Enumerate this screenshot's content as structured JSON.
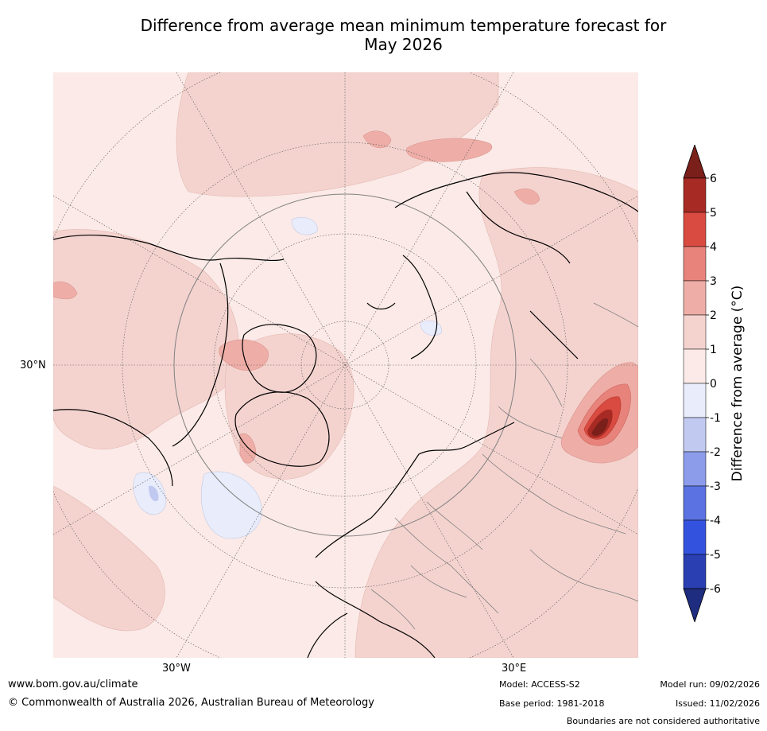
{
  "title": {
    "line1": "Difference from average mean minimum temperature forecast for",
    "line2": "May 2026"
  },
  "map": {
    "labels": {
      "lat_30n": "30°N",
      "lon_30w": "30°W",
      "lon_30e": "30°E"
    },
    "background_color": "#fbeae7",
    "land_outline_color": "#000000",
    "border_color": "#808080"
  },
  "colorbar": {
    "title": "Difference from average (°C)",
    "ticks": [
      "6",
      "5",
      "4",
      "3",
      "2",
      "1",
      "0",
      "-1",
      "-2",
      "-3",
      "-4",
      "-5",
      "-6"
    ],
    "bins": [
      {
        "range": ">6",
        "color": "#7a1f1a"
      },
      {
        "range": "5 to 6",
        "color": "#a72a24"
      },
      {
        "range": "4 to 5",
        "color": "#d94b40"
      },
      {
        "range": "3 to 4",
        "color": "#e8837b"
      },
      {
        "range": "2 to 3",
        "color": "#eeaea7"
      },
      {
        "range": "1 to 2",
        "color": "#f4d3cf"
      },
      {
        "range": "0 to 1",
        "color": "#fbeae7"
      },
      {
        "range": "-1 to 0",
        "color": "#e8ecfb"
      },
      {
        "range": "-2 to -1",
        "color": "#c1c9f0"
      },
      {
        "range": "-3 to -2",
        "color": "#8c9ceb"
      },
      {
        "range": "-4 to -3",
        "color": "#5a72e2"
      },
      {
        "range": "-5 to -4",
        "color": "#3353de"
      },
      {
        "range": "-6 to -5",
        "color": "#2a3fb2"
      },
      {
        "range": "<-6",
        "color": "#1f2d80"
      }
    ]
  },
  "footer": {
    "website": "www.bom.gov.au/climate",
    "copyright": "© Commonwealth of Australia 2026, Australian Bureau of Meteorology",
    "model": "Model: ACCESS-S2",
    "base_period": "Base period: 1981-2018",
    "model_run": "Model run: 09/02/2026",
    "issued": "Issued: 11/02/2026",
    "disclaimer": "Boundaries are not considered authoritative"
  }
}
